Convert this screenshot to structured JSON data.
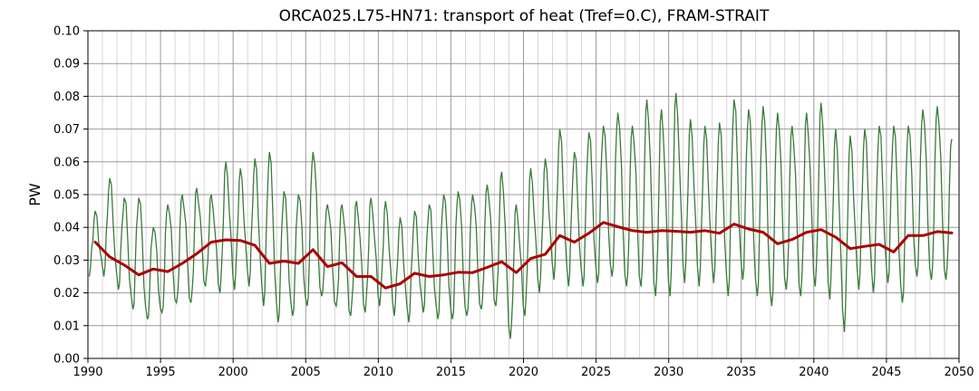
{
  "chart_data": {
    "type": "line",
    "title": "ORCA025.L75-HN71: transport of heat (Tref=0.C), FRAM-STRAIT",
    "xlabel": "",
    "ylabel": "PW",
    "xlim": [
      1990,
      2050
    ],
    "ylim": [
      0.0,
      0.1
    ],
    "x_ticks": [
      "1990",
      "1995",
      "2000",
      "2005",
      "2010",
      "2015",
      "2020",
      "2025",
      "2030",
      "2035",
      "2040",
      "2045",
      "2050"
    ],
    "y_ticks": [
      "0.00",
      "0.01",
      "0.02",
      "0.03",
      "0.04",
      "0.05",
      "0.06",
      "0.07",
      "0.08",
      "0.09",
      "0.10"
    ],
    "grid": true,
    "minor_grid_x": true,
    "colors": {
      "monthly": "#3a7a3a",
      "annual": "#aa0000",
      "grid_major": "#999999",
      "grid_minor": "#cccccc"
    },
    "series": [
      {
        "style": "thin-line",
        "sampling": "monthly, one peak per year",
        "annual_peaks": {
          "x": [
            1990.5,
            1991.5,
            1992.5,
            1993.5,
            1994.5,
            1995.5,
            1996.5,
            1997.5,
            1998.5,
            1999.5,
            2000.5,
            2001.5,
            2002.5,
            2003.5,
            2004.5,
            2005.5,
            2006.5,
            2007.5,
            2008.5,
            2009.5,
            2010.5,
            2011.5,
            2012.5,
            2013.5,
            2014.5,
            2015.5,
            2016.5,
            2017.5,
            2018.5,
            2019.5,
            2020.5,
            2021.5,
            2022.5,
            2023.5,
            2024.5,
            2025.5,
            2026.5,
            2027.5,
            2028.5,
            2029.5,
            2030.5,
            2031.5,
            2032.5,
            2033.5,
            2034.5,
            2035.5,
            2036.5,
            2037.5,
            2038.5,
            2039.5,
            2040.5,
            2041.5,
            2042.5,
            2043.5,
            2044.5,
            2045.5,
            2046.5,
            2047.5,
            2048.5,
            2049.5
          ],
          "y": [
            0.045,
            0.055,
            0.049,
            0.049,
            0.04,
            0.047,
            0.05,
            0.052,
            0.05,
            0.06,
            0.058,
            0.061,
            0.063,
            0.051,
            0.05,
            0.063,
            0.047,
            0.047,
            0.048,
            0.049,
            0.048,
            0.043,
            0.045,
            0.047,
            0.05,
            0.051,
            0.05,
            0.053,
            0.057,
            0.047,
            0.058,
            0.061,
            0.07,
            0.063,
            0.069,
            0.071,
            0.075,
            0.071,
            0.079,
            0.076,
            0.081,
            0.073,
            0.071,
            0.072,
            0.079,
            0.076,
            0.077,
            0.075,
            0.071,
            0.075,
            0.078,
            0.07,
            0.068,
            0.07,
            0.071,
            0.071,
            0.071,
            0.076,
            0.077,
            0.067
          ]
        },
        "annual_troughs": {
          "x": [
            1990.1,
            1991.1,
            1992.1,
            1993.1,
            1994.1,
            1995.1,
            1996.1,
            1997.1,
            1998.1,
            1999.1,
            2000.1,
            2001.1,
            2002.1,
            2003.1,
            2004.1,
            2005.1,
            2006.1,
            2007.1,
            2008.1,
            2009.1,
            2010.1,
            2011.1,
            2012.1,
            2013.1,
            2014.1,
            2015.1,
            2016.1,
            2017.1,
            2018.1,
            2019.1,
            2020.1,
            2021.1,
            2022.1,
            2023.1,
            2024.1,
            2025.1,
            2026.1,
            2027.1,
            2028.1,
            2029.1,
            2030.1,
            2031.1,
            2032.1,
            2033.1,
            2034.1,
            2035.1,
            2036.1,
            2037.1,
            2038.1,
            2039.1,
            2040.1,
            2041.1,
            2042.1,
            2043.1,
            2044.1,
            2045.1,
            2046.1,
            2047.1,
            2048.1,
            2049.1
          ],
          "y": [
            0.025,
            0.025,
            0.021,
            0.015,
            0.012,
            0.014,
            0.017,
            0.017,
            0.022,
            0.02,
            0.021,
            0.022,
            0.016,
            0.011,
            0.013,
            0.016,
            0.019,
            0.016,
            0.013,
            0.014,
            0.016,
            0.013,
            0.011,
            0.014,
            0.012,
            0.012,
            0.013,
            0.015,
            0.016,
            0.006,
            0.013,
            0.02,
            0.024,
            0.022,
            0.022,
            0.023,
            0.025,
            0.022,
            0.022,
            0.019,
            0.019,
            0.023,
            0.022,
            0.023,
            0.019,
            0.024,
            0.019,
            0.016,
            0.021,
            0.019,
            0.022,
            0.018,
            0.008,
            0.021,
            0.02,
            0.023,
            0.017,
            0.025,
            0.024,
            0.024
          ]
        }
      },
      {
        "style": "thick-line",
        "x": [
          1990.5,
          1991.5,
          1992.5,
          1993.5,
          1994.5,
          1995.5,
          1996.5,
          1997.5,
          1998.5,
          1999.5,
          2000.5,
          2001.5,
          2002.5,
          2003.5,
          2004.5,
          2005.5,
          2006.5,
          2007.5,
          2008.5,
          2009.5,
          2010.5,
          2011.5,
          2012.5,
          2013.5,
          2014.5,
          2015.5,
          2016.5,
          2017.5,
          2018.5,
          2019.5,
          2020.5,
          2021.5,
          2022.5,
          2023.5,
          2024.5,
          2025.5,
          2026.5,
          2027.5,
          2028.5,
          2029.5,
          2030.5,
          2031.5,
          2032.5,
          2033.5,
          2034.5,
          2035.5,
          2036.5,
          2037.5,
          2038.5,
          2039.5,
          2040.5,
          2041.5,
          2042.5,
          2043.5,
          2044.5,
          2045.5,
          2046.5,
          2047.5,
          2048.5,
          2049.5
        ],
        "values": [
          0.0355,
          0.031,
          0.0285,
          0.0255,
          0.0273,
          0.0265,
          0.029,
          0.032,
          0.0355,
          0.0362,
          0.036,
          0.0345,
          0.029,
          0.0297,
          0.029,
          0.0332,
          0.028,
          0.0292,
          0.025,
          0.025,
          0.0215,
          0.0228,
          0.026,
          0.025,
          0.0255,
          0.0263,
          0.0262,
          0.0278,
          0.0295,
          0.0262,
          0.0305,
          0.0318,
          0.0375,
          0.0355,
          0.0382,
          0.0415,
          0.0402,
          0.039,
          0.0385,
          0.039,
          0.0388,
          0.0385,
          0.039,
          0.0382,
          0.041,
          0.0395,
          0.0385,
          0.035,
          0.0363,
          0.0385,
          0.0393,
          0.037,
          0.0335,
          0.0342,
          0.0348,
          0.0325,
          0.0375,
          0.0375,
          0.0387,
          0.0383
        ]
      }
    ]
  }
}
